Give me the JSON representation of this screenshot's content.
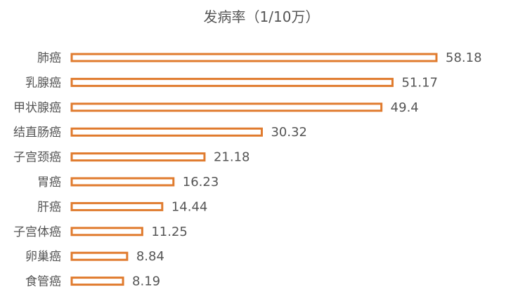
{
  "chart_data": {
    "type": "bar",
    "orientation": "horizontal",
    "title": "发病率（1/10万）",
    "categories": [
      "肺癌",
      "乳腺癌",
      "甲状腺癌",
      "结直肠癌",
      "子宫颈癌",
      "胃癌",
      "肝癌",
      "子宫体癌",
      "卵巢癌",
      "食管癌"
    ],
    "values": [
      58.18,
      51.17,
      49.4,
      30.32,
      21.18,
      16.23,
      14.44,
      11.25,
      8.84,
      8.19
    ],
    "xlim": [
      0,
      58.18
    ],
    "bar_stroke_color": "#e07b2e",
    "bar_fill_color": "#ffffff",
    "grid": false,
    "legend": "none"
  }
}
